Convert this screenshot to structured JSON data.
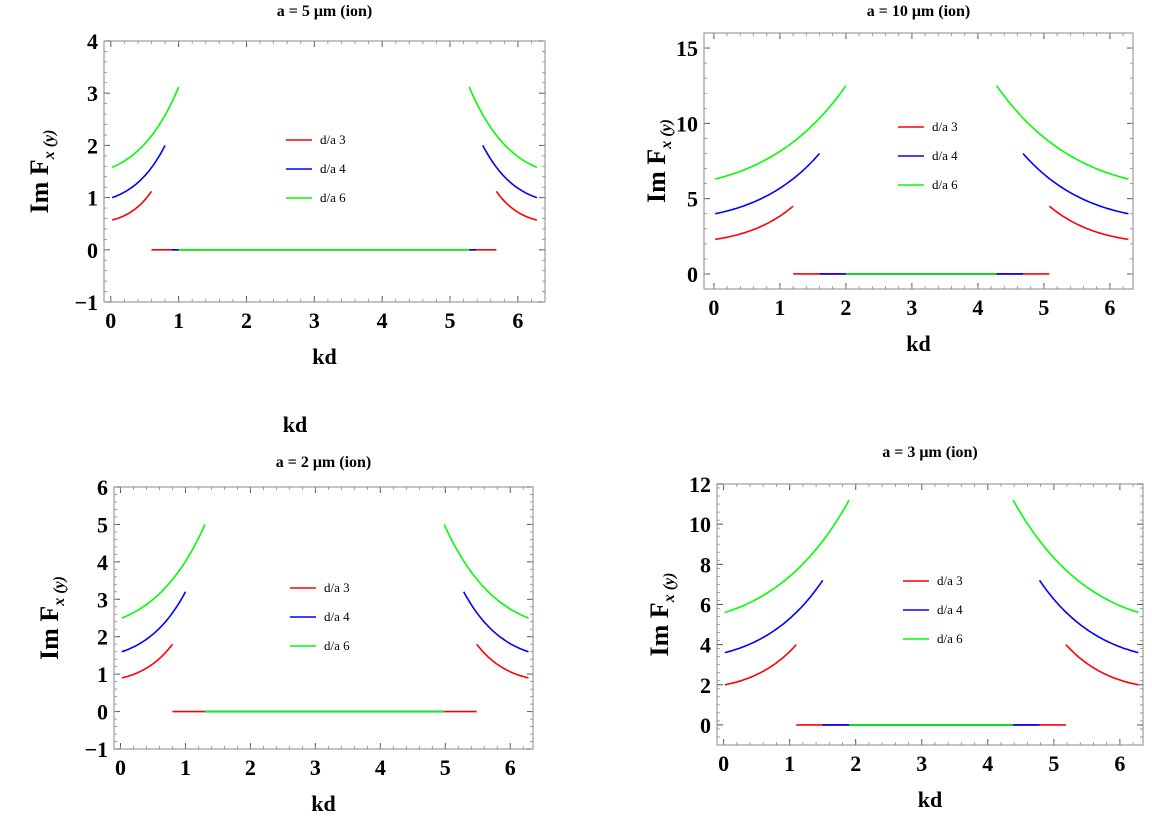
{
  "stray_label": "kd",
  "chart_data": [
    {
      "type": "line",
      "title": "a = 5 μm (ion)",
      "xlabel": "kd",
      "ylabel": "Im F",
      "ylabel_sub": "x (y)",
      "xlim": [
        -0.1,
        6.4
      ],
      "ylim": [
        -1,
        4
      ],
      "xticks": [
        0,
        1,
        2,
        3,
        4,
        5,
        6
      ],
      "yticks": [
        -1,
        0,
        1,
        2,
        3,
        4
      ],
      "legend": [
        "d/a 3",
        "d/a 4",
        "d/a 6"
      ],
      "colors": [
        "#ff0000",
        "#0000ff",
        "#00ff00"
      ],
      "series": [
        {
          "name": "d/a 3",
          "start": 0.57,
          "end": 1.12,
          "cut": 0.6,
          "zero": 0.6
        },
        {
          "name": "d/a 4",
          "start": 1.0,
          "end": 2.0,
          "cut": 0.8,
          "zero": 0.9
        },
        {
          "name": "d/a 6",
          "start": 1.58,
          "end": 3.12,
          "cut": 1.0,
          "zero": 1.0
        }
      ]
    },
    {
      "type": "line",
      "title": "a = 10 μm (ion)",
      "xlabel": "kd",
      "ylabel": "Im F",
      "ylabel_sub": "x (y)",
      "xlim": [
        -0.15,
        6.35
      ],
      "ylim": [
        -1,
        16
      ],
      "xticks": [
        0,
        1,
        2,
        3,
        4,
        5,
        6
      ],
      "yticks": [
        0,
        5,
        10,
        15
      ],
      "legend": [
        "d/a 3",
        "d/a 4",
        "d/a 6"
      ],
      "colors": [
        "#ff0000",
        "#0000ff",
        "#00ff00"
      ],
      "series": [
        {
          "name": "d/a 3",
          "start": 2.3,
          "end": 4.5,
          "cut": 1.2,
          "zero": 1.2
        },
        {
          "name": "d/a 4",
          "start": 4.0,
          "end": 8.0,
          "cut": 1.6,
          "zero": 1.6
        },
        {
          "name": "d/a 6",
          "start": 6.3,
          "end": 12.5,
          "cut": 2.0,
          "zero": 2.0
        }
      ]
    },
    {
      "type": "line",
      "title": "a = 2 μm (ion)",
      "xlabel": "kd",
      "ylabel": "Im F",
      "ylabel_sub": "x (y)",
      "xlim": [
        -0.1,
        6.35
      ],
      "ylim": [
        -1,
        6
      ],
      "xticks": [
        0,
        1,
        2,
        3,
        4,
        5,
        6
      ],
      "yticks": [
        -1,
        0,
        1,
        2,
        3,
        4,
        5,
        6
      ],
      "legend": [
        "d/a 3",
        "d/a 4",
        "d/a 6"
      ],
      "colors": [
        "#ff0000",
        "#0000ff",
        "#00ff00"
      ],
      "series": [
        {
          "name": "d/a 3",
          "start": 0.9,
          "end": 1.8,
          "cut": 0.8,
          "zero": 0.8
        },
        {
          "name": "d/a 4",
          "start": 1.6,
          "end": 3.2,
          "cut": 1.0,
          "zero": 1.3
        },
        {
          "name": "d/a 6",
          "start": 2.5,
          "end": 5.0,
          "cut": 1.3,
          "zero": 1.3
        }
      ]
    },
    {
      "type": "line",
      "title": "a = 3 μm (ion)",
      "xlabel": "kd",
      "ylabel": "Im F",
      "ylabel_sub": "x (y)",
      "xlim": [
        -0.1,
        6.35
      ],
      "ylim": [
        -1,
        12
      ],
      "xticks": [
        0,
        1,
        2,
        3,
        4,
        5,
        6
      ],
      "yticks": [
        0,
        2,
        4,
        6,
        8,
        10,
        12
      ],
      "legend": [
        "d/a 3",
        "d/a 4",
        "d/a 6"
      ],
      "colors": [
        "#ff0000",
        "#0000ff",
        "#00ff00"
      ],
      "series": [
        {
          "name": "d/a 3",
          "start": 2.0,
          "end": 4.0,
          "cut": 1.1,
          "zero": 1.1
        },
        {
          "name": "d/a 4",
          "start": 3.6,
          "end": 7.2,
          "cut": 1.5,
          "zero": 1.5
        },
        {
          "name": "d/a 6",
          "start": 5.6,
          "end": 11.2,
          "cut": 1.9,
          "zero": 1.9
        }
      ]
    }
  ]
}
